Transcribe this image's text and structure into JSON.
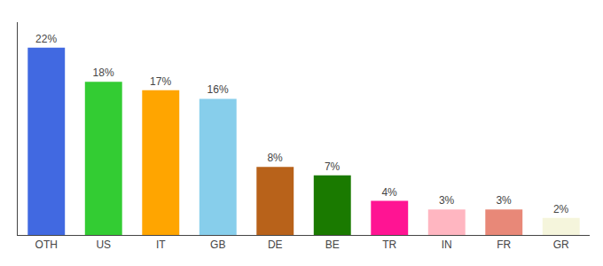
{
  "chart_data": {
    "type": "bar",
    "categories": [
      "OTH",
      "US",
      "IT",
      "GB",
      "DE",
      "BE",
      "TR",
      "IN",
      "FR",
      "GR"
    ],
    "values": [
      22,
      18,
      17,
      16,
      8,
      7,
      4,
      3,
      3,
      2
    ],
    "value_labels": [
      "22%",
      "18%",
      "17%",
      "16%",
      "8%",
      "7%",
      "4%",
      "3%",
      "3%",
      "2%"
    ],
    "colors": [
      "#4169e1",
      "#33cc33",
      "#ffa500",
      "#87ceeb",
      "#b8621a",
      "#1a7a00",
      "#ff1493",
      "#ffb6c1",
      "#e88878",
      "#f5f5dc"
    ],
    "ylim": [
      0,
      25
    ],
    "data_labels": true,
    "tick_labels": "x",
    "grid": false
  }
}
